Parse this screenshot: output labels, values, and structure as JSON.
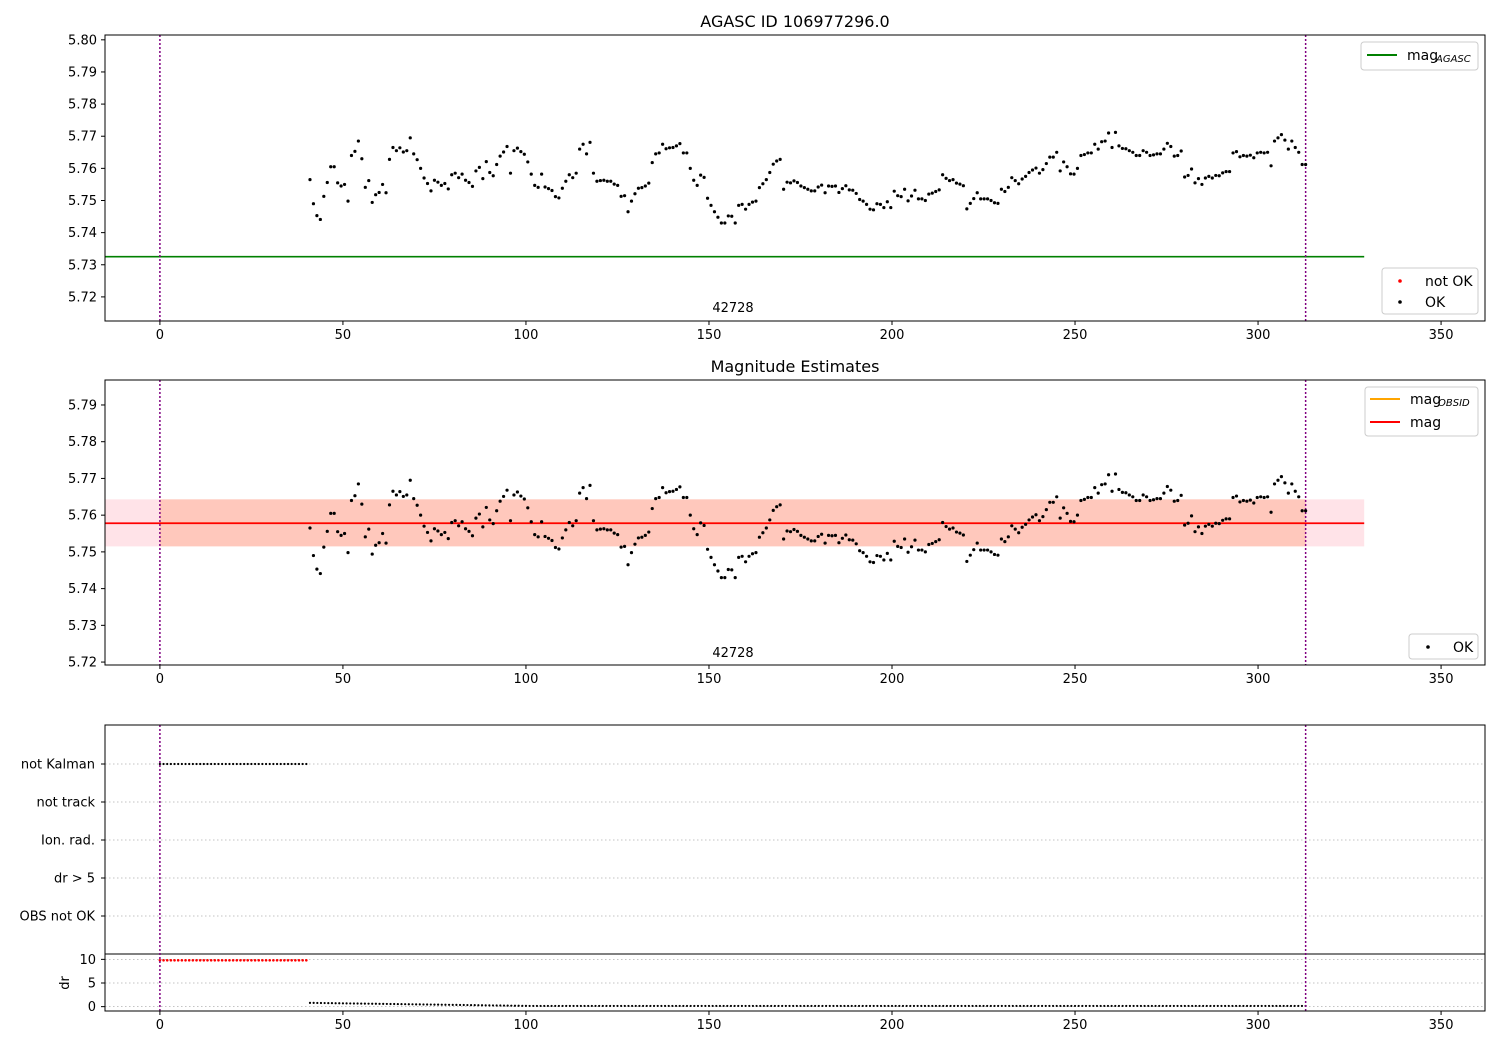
{
  "chart_data": [
    {
      "type": "scatter",
      "title": "AGASC ID 106977296.0",
      "xlim": [
        -15,
        362
      ],
      "ylim": [
        5.7125,
        5.8015
      ],
      "xticks": [
        0,
        50,
        100,
        150,
        200,
        250,
        300,
        350
      ],
      "yticks": [
        5.72,
        5.73,
        5.74,
        5.75,
        5.76,
        5.77,
        5.78,
        5.79,
        5.8
      ],
      "ytick_labels": [
        "5.72",
        "5.73",
        "5.74",
        "5.75",
        "5.76",
        "5.77",
        "5.78",
        "5.79",
        "5.80"
      ],
      "obsid_label": "42728",
      "vlines_x": [
        0,
        313
      ],
      "mag_agasc": 5.7325,
      "mag_agasc_xrange": [
        -15,
        329
      ],
      "legend_lines": [
        {
          "label": "mag",
          "sub": "AGASC",
          "color": "#008000"
        }
      ],
      "legend_points": [
        {
          "label": "not OK",
          "color": "#ff0000"
        },
        {
          "label": "OK",
          "color": "#000000"
        }
      ],
      "series": [
        {
          "name": "OK",
          "color": "#000000",
          "x_start": 41,
          "x_end": 313,
          "y": [
            5.7565,
            5.749,
            5.7453,
            5.7441,
            5.7513,
            5.7556,
            5.7605,
            5.7605,
            5.7555,
            5.7545,
            5.755,
            5.7498,
            5.764,
            5.7653,
            5.7685,
            5.763,
            5.7541,
            5.7562,
            5.7494,
            5.7518,
            5.7525,
            5.755,
            5.7524,
            5.7628,
            5.7665,
            5.7655,
            5.7664,
            5.7651,
            5.7655,
            5.7695,
            5.7645,
            5.7627,
            5.76,
            5.757,
            5.7553,
            5.753,
            5.7563,
            5.7557,
            5.7547,
            5.7553,
            5.7536,
            5.758,
            5.7585,
            5.7571,
            5.7582,
            5.7563,
            5.7556,
            5.7544,
            5.7592,
            5.7603,
            5.7568,
            5.7621,
            5.7587,
            5.7577,
            5.7612,
            5.7638,
            5.7651,
            5.7668,
            5.7585,
            5.7655,
            5.7663,
            5.7652,
            5.7644,
            5.762,
            5.7582,
            5.7547,
            5.7541,
            5.7582,
            5.7542,
            5.7537,
            5.7531,
            5.7512,
            5.7508,
            5.7538,
            5.756,
            5.758,
            5.7571,
            5.7585,
            5.766,
            5.7675,
            5.7645,
            5.7681,
            5.7585,
            5.756,
            5.7562,
            5.7563,
            5.756,
            5.756,
            5.7551,
            5.7547,
            5.7513,
            5.7515,
            5.7465,
            5.7498,
            5.7521,
            5.7538,
            5.754,
            5.7545,
            5.7554,
            5.7618,
            5.7645,
            5.7648,
            5.7675,
            5.7661,
            5.7664,
            5.7665,
            5.767,
            5.7677,
            5.7648,
            5.7648,
            5.76,
            5.7563,
            5.7547,
            5.7579,
            5.7572,
            5.7507,
            5.7485,
            5.7465,
            5.7448,
            5.743,
            5.743,
            5.7452,
            5.7451,
            5.743,
            5.7485,
            5.7488,
            5.7473,
            5.7488,
            5.7495,
            5.7498,
            5.754,
            5.7552,
            5.7565,
            5.7587,
            5.7613,
            5.7623,
            5.7628,
            5.7535,
            5.7557,
            5.7555,
            5.7561,
            5.7556,
            5.7545,
            5.754,
            5.7535,
            5.753,
            5.753,
            5.7542,
            5.7548,
            5.7524,
            5.7545,
            5.7544,
            5.7545,
            5.7525,
            5.7537,
            5.7546,
            5.7533,
            5.7532,
            5.7522,
            5.7503,
            5.7498,
            5.7488,
            5.7473,
            5.7471,
            5.749,
            5.7488,
            5.7478,
            5.7496,
            5.7478,
            5.7529,
            5.7515,
            5.7512,
            5.7535,
            5.7499,
            5.7514,
            5.7532,
            5.7505,
            5.7505,
            5.75,
            5.752,
            5.7523,
            5.7528,
            5.7533,
            5.758,
            5.7569,
            5.7562,
            5.7565,
            5.7554,
            5.7551,
            5.7546,
            5.7474,
            5.7491,
            5.7506,
            5.7524,
            5.7505,
            5.7505,
            5.7505,
            5.75,
            5.7493,
            5.7491,
            5.7535,
            5.7528,
            5.7541,
            5.7571,
            5.7562,
            5.7552,
            5.7567,
            5.7575,
            5.7587,
            5.7595,
            5.7601,
            5.7585,
            5.7596,
            5.7615,
            5.7635,
            5.7635,
            5.765,
            5.7592,
            5.762,
            5.7605,
            5.7583,
            5.7582,
            5.76,
            5.764,
            5.7643,
            5.7648,
            5.7648,
            5.7675,
            5.766,
            5.7683,
            5.7685,
            5.771,
            5.7665,
            5.7712,
            5.767,
            5.7662,
            5.7661,
            5.7655,
            5.765,
            5.764,
            5.764,
            5.7655,
            5.765,
            5.764,
            5.7642,
            5.7645,
            5.7645,
            5.766,
            5.7678,
            5.7668,
            5.7638,
            5.764,
            5.7654,
            5.7573,
            5.7578,
            5.7598,
            5.7555,
            5.7568,
            5.755,
            5.757,
            5.7575,
            5.757,
            5.7578,
            5.7577,
            5.7586,
            5.759,
            5.759,
            5.7648,
            5.7652,
            5.7636,
            5.764,
            5.7638,
            5.7641,
            5.7633,
            5.7648,
            5.765,
            5.7648,
            5.765,
            5.7608,
            5.7685,
            5.7695,
            5.7705,
            5.7688,
            5.766,
            5.7685,
            5.7665,
            5.765,
            5.7612,
            5.7612
          ]
        }
      ]
    },
    {
      "type": "scatter",
      "title": "Magnitude Estimates",
      "xlim": [
        -15,
        362
      ],
      "ylim": [
        5.7192,
        5.7968
      ],
      "xticks": [
        0,
        50,
        100,
        150,
        200,
        250,
        300,
        350
      ],
      "yticks": [
        5.72,
        5.73,
        5.74,
        5.75,
        5.76,
        5.77,
        5.78,
        5.79
      ],
      "ytick_labels": [
        "5.72",
        "5.73",
        "5.74",
        "5.75",
        "5.76",
        "5.77",
        "5.78",
        "5.79"
      ],
      "obsid_label": "42728",
      "vlines_x": [
        0,
        313
      ],
      "mag": 5.7578,
      "mag_band": [
        5.7515,
        5.7643
      ],
      "mag_xrange": [
        -15,
        329
      ],
      "mag_obsid": 5.7578,
      "mag_obsid_band": [
        5.7515,
        5.7643
      ],
      "mag_obsid_xrange": [
        0,
        313
      ],
      "legend_lines": [
        {
          "label": "mag",
          "sub": "OBSID",
          "color": "#ffa500"
        },
        {
          "label": "mag",
          "sub": "",
          "color": "#ff0000"
        }
      ],
      "legend_points": [
        {
          "label": "OK",
          "color": "#000000"
        }
      ],
      "series_ref": "same OK points as panel 1"
    },
    {
      "type": "scatter",
      "title": "",
      "xlim": [
        -15,
        362
      ],
      "xticks": [
        0,
        50,
        100,
        150,
        200,
        250,
        300,
        350
      ],
      "categories": [
        "not Kalman",
        "not track",
        "Ion. rad.",
        "dr > 5",
        "OBS not OK"
      ],
      "not_kalman_x_range": [
        0,
        40
      ],
      "vlines_x": [
        0,
        313
      ],
      "dr_ylabel": "dr",
      "dr_yticks": [
        0,
        5,
        10
      ],
      "dr_ylim": [
        -0.5,
        10.5
      ],
      "dr_bad": {
        "x_range": [
          0,
          40
        ],
        "value": 9.8,
        "color": "#ff0000"
      },
      "dr_ok": {
        "x_range": [
          41,
          313
        ],
        "start": 0.8,
        "end": 0.15,
        "color": "#000000"
      }
    }
  ]
}
